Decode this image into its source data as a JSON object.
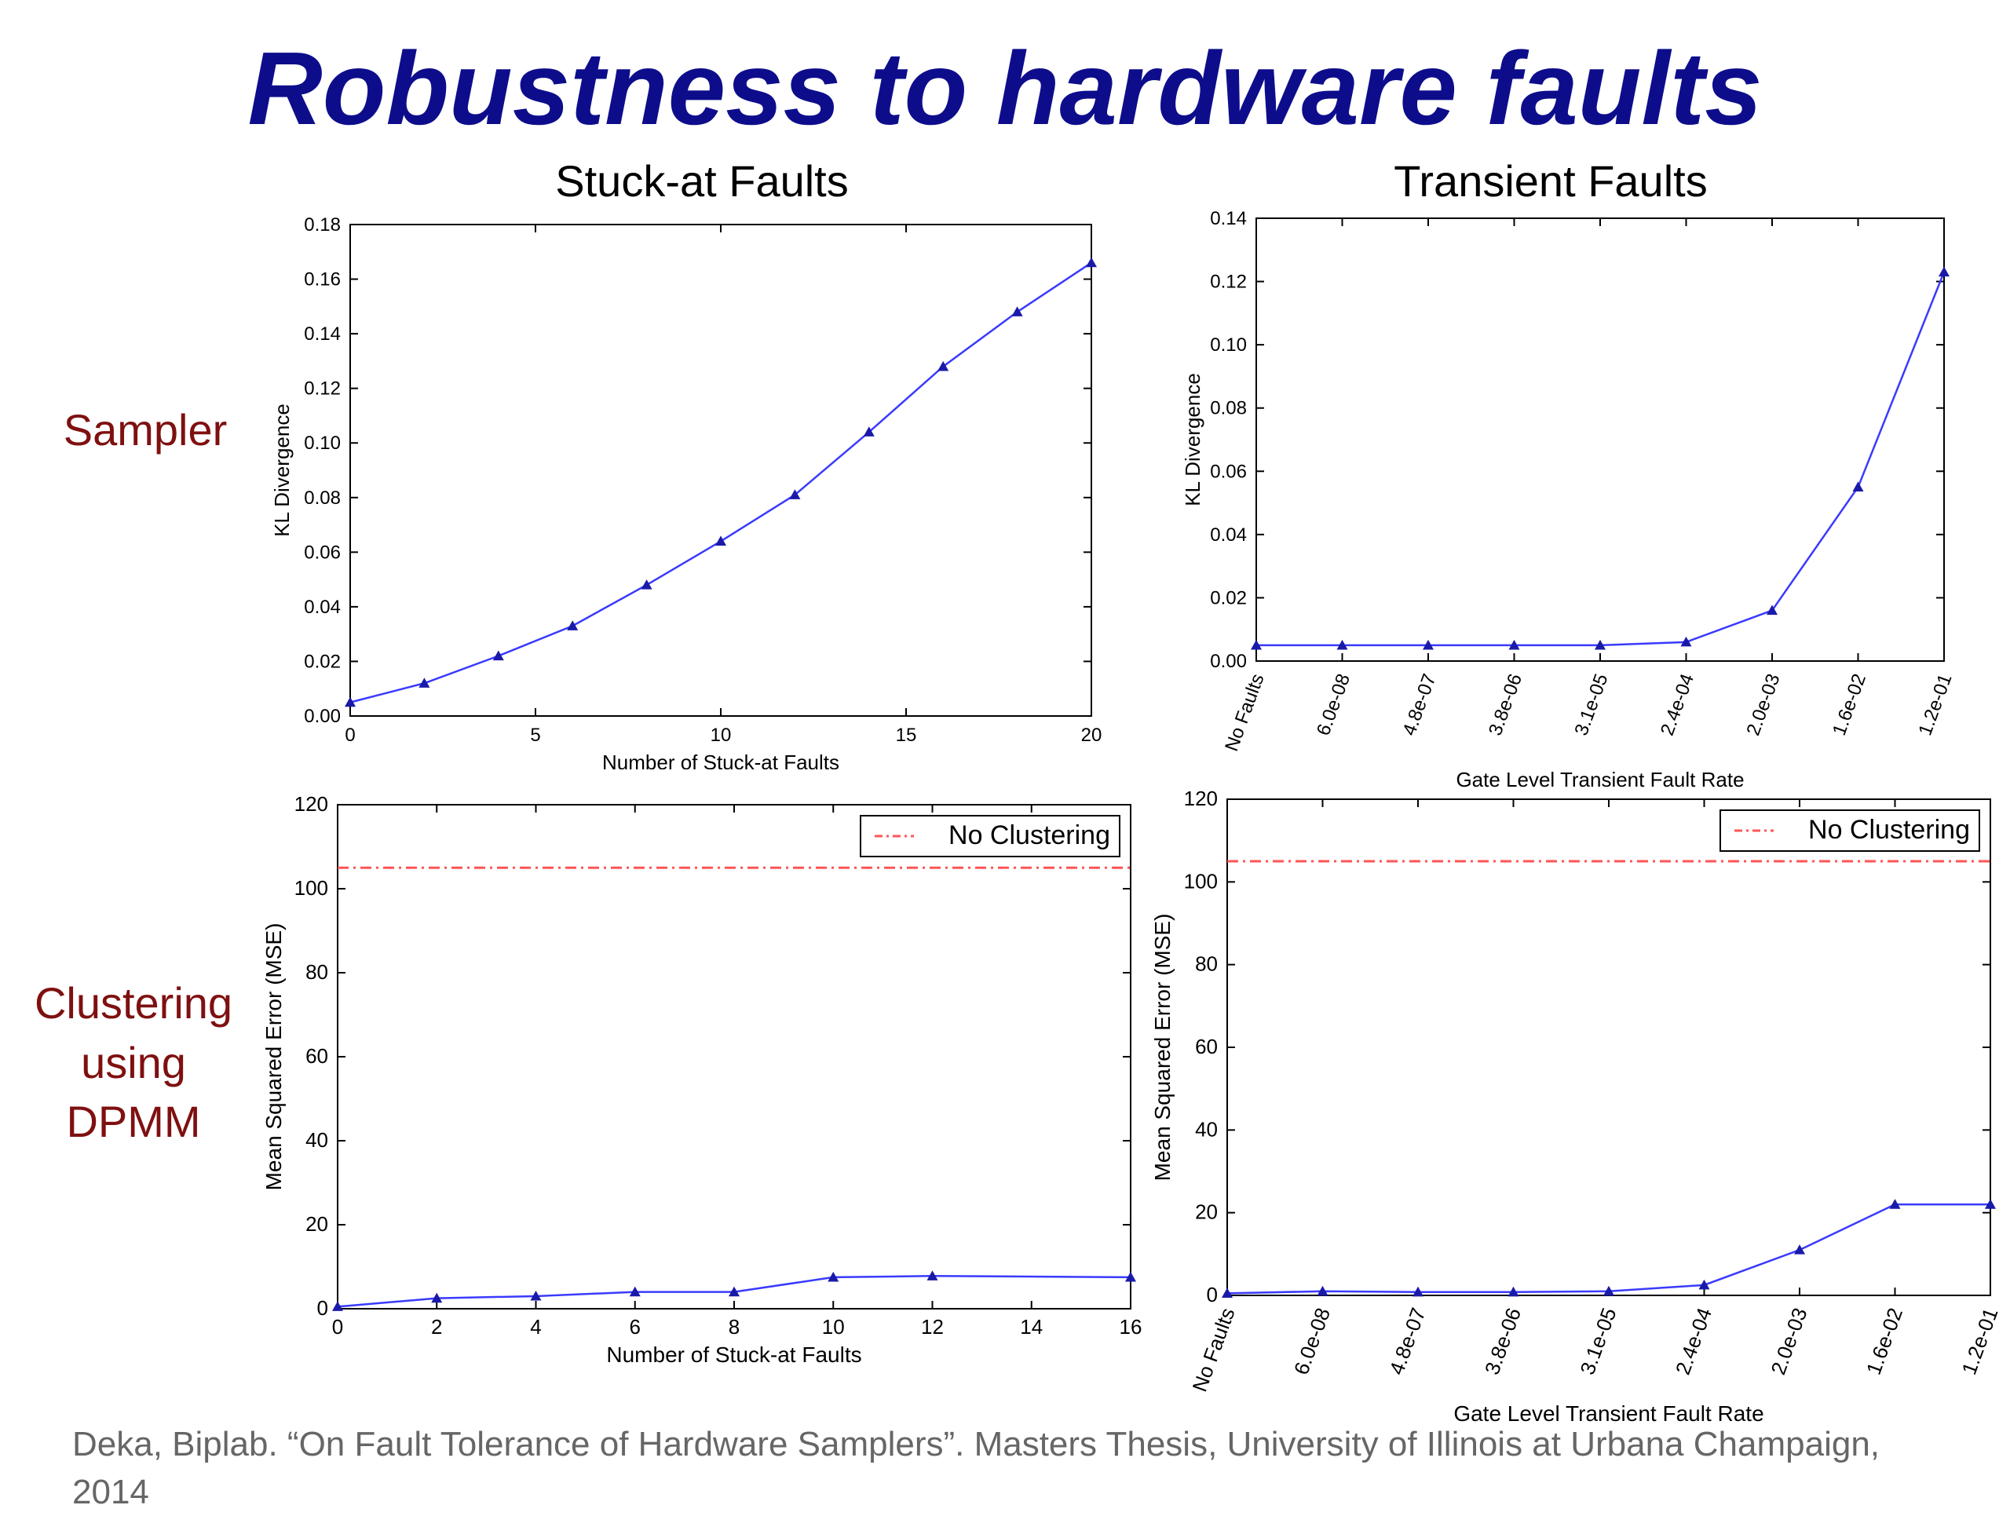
{
  "slide": {
    "title": "Robustness to hardware faults",
    "row_labels": {
      "sampler": "Sampler",
      "clustering": "Clustering using DPMM"
    },
    "citation": "Deka, Biplab. “On Fault Tolerance of Hardware Samplers”. Masters Thesis, University of Illinois at Urbana Champaign, 2014"
  },
  "colors": {
    "title": "#0d0d8c",
    "row_label": "#7f1010",
    "series": "#3a3aff",
    "marker": "#1a1aa8",
    "reference": "#ff5555",
    "citation": "#666666"
  },
  "chart_data": [
    {
      "type": "line",
      "title": "Stuck-at Faults",
      "xlabel": "Number of Stuck-at Faults",
      "ylabel": "KL Divergence",
      "xlim": [
        0,
        20
      ],
      "ylim": [
        0,
        0.18
      ],
      "xticks": [
        0,
        5,
        10,
        15,
        20
      ],
      "yticks": [
        0.0,
        0.02,
        0.04,
        0.06,
        0.08,
        0.1,
        0.12,
        0.14,
        0.16,
        0.18
      ],
      "ytick_labels": [
        "0.00",
        "0.02",
        "0.04",
        "0.06",
        "0.08",
        "0.10",
        "0.12",
        "0.14",
        "0.16",
        "0.18"
      ],
      "x": [
        0,
        2,
        4,
        6,
        8,
        10,
        12,
        14,
        16,
        18,
        20
      ],
      "y": [
        0.005,
        0.012,
        0.022,
        0.033,
        0.048,
        0.064,
        0.081,
        0.104,
        0.128,
        0.148,
        0.166
      ],
      "marker": "triangle"
    },
    {
      "type": "line",
      "title": "Transient Faults",
      "xlabel": "Gate Level Transient Fault Rate",
      "ylabel": "KL Divergence",
      "ylim": [
        0,
        0.14
      ],
      "categories": [
        "No Faults",
        "6.0e-08",
        "4.8e-07",
        "3.8e-06",
        "3.1e-05",
        "2.4e-04",
        "2.0e-03",
        "1.6e-02",
        "1.2e-01"
      ],
      "yticks": [
        0.0,
        0.02,
        0.04,
        0.06,
        0.08,
        0.1,
        0.12,
        0.14
      ],
      "ytick_labels": [
        "0.00",
        "0.02",
        "0.04",
        "0.06",
        "0.08",
        "0.10",
        "0.12",
        "0.14"
      ],
      "y": [
        0.005,
        0.005,
        0.005,
        0.005,
        0.005,
        0.006,
        0.016,
        0.055,
        0.123
      ],
      "marker": "triangle"
    },
    {
      "type": "line",
      "xlabel": "Number of Stuck-at Faults",
      "ylabel": "Mean Squared Error (MSE)",
      "xlim": [
        0,
        16
      ],
      "ylim": [
        0,
        120
      ],
      "xticks": [
        0,
        2,
        4,
        6,
        8,
        10,
        12,
        14,
        16
      ],
      "xtick_labels": [
        "0",
        "2",
        "4",
        "6",
        "8",
        "10",
        "12",
        "14",
        "16"
      ],
      "yticks": [
        0,
        20,
        40,
        60,
        80,
        100,
        120
      ],
      "ytick_labels": [
        "0",
        "20",
        "40",
        "60",
        "80",
        "100",
        "120"
      ],
      "x": [
        0,
        2,
        4,
        6,
        8,
        10,
        12,
        16
      ],
      "y": [
        0.5,
        2.5,
        3,
        4,
        4,
        7.5,
        7.8,
        7.5
      ],
      "marker": "triangle",
      "reference_line": {
        "name": "No Clustering",
        "y": 105
      },
      "legend": "top-right"
    },
    {
      "type": "line",
      "xlabel": "Gate Level Transient Fault Rate",
      "ylabel": "Mean Squared Error (MSE)",
      "ylim": [
        0,
        120
      ],
      "categories": [
        "No Faults",
        "6.0e-08",
        "4.8e-07",
        "3.8e-06",
        "3.1e-05",
        "2.4e-04",
        "2.0e-03",
        "1.6e-02",
        "1.2e-01"
      ],
      "yticks": [
        0,
        20,
        40,
        60,
        80,
        100,
        120
      ],
      "ytick_labels": [
        "0",
        "20",
        "40",
        "60",
        "80",
        "100",
        "120"
      ],
      "y": [
        0.5,
        1,
        0.8,
        0.8,
        1,
        2.5,
        11,
        22,
        22
      ],
      "marker": "triangle",
      "reference_line": {
        "name": "No Clustering",
        "y": 105
      },
      "legend": "top-right"
    }
  ]
}
